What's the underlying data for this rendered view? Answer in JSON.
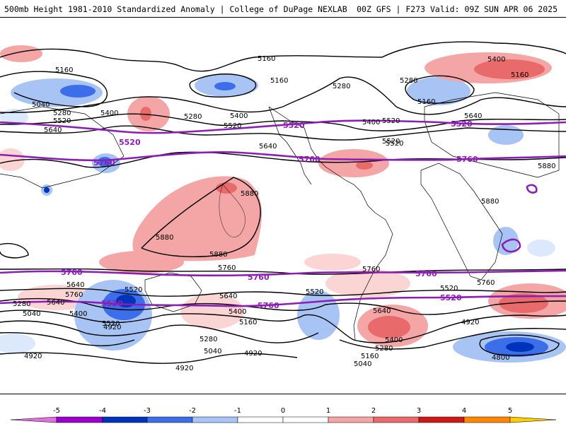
{
  "header": {
    "title": "500mb Height 1981-2010 Standardized Anomaly | College of DuPage NEXLAB",
    "run_info": "00Z GFS | F273 Valid: 09Z SUN APR 06 2025"
  },
  "colors": {
    "contour": "#000000",
    "highlight_contour": "#8c1eb4",
    "neg5": "#e070e0",
    "neg4": "#9900cc",
    "neg3": "#0033bb",
    "neg2": "#3b6ee8",
    "neg1": "#a8c4f4",
    "neg0": "#dce8fb",
    "pos0": "#fbd4d4",
    "pos1": "#f4a6a6",
    "pos2": "#e86a6a",
    "pos3": "#cc1a1a",
    "pos4": "#ff8800",
    "pos5": "#ffcc00"
  },
  "colorbar": {
    "ticks": [
      "-5",
      "-4",
      "-3",
      "-2",
      "-1",
      "0",
      "1",
      "2",
      "3",
      "4",
      "5"
    ]
  },
  "contour_labels": {
    "black": [
      "5160",
      "5160",
      "5160",
      "5040",
      "5280",
      "5520",
      "5640",
      "5400",
      "5280",
      "5400",
      "5520",
      "5160",
      "5280",
      "5640",
      "5400",
      "5520",
      "5400",
      "5280",
      "5160",
      "5640",
      "5520",
      "5880",
      "5880",
      "5880",
      "5880",
      "5880",
      "5760",
      "5760",
      "5640",
      "5520",
      "5400",
      "5280",
      "5040",
      "4920",
      "4920",
      "4920",
      "5280",
      "5640",
      "5520",
      "5400",
      "5160",
      "5040",
      "4920",
      "5520",
      "5640",
      "5400",
      "5280",
      "5160",
      "5040",
      "5520",
      "5760",
      "5640",
      "5520",
      "4920",
      "4800",
      "5760"
    ],
    "highlight": [
      "5520",
      "5760",
      "5520",
      "5760",
      "5520",
      "5760",
      "5760",
      "5520",
      "5760",
      "5760",
      "5760",
      "5520",
      "5520",
      "5520"
    ]
  },
  "map_description_labels": {
    "anomaly_scale_unit": "standardized anomaly"
  }
}
